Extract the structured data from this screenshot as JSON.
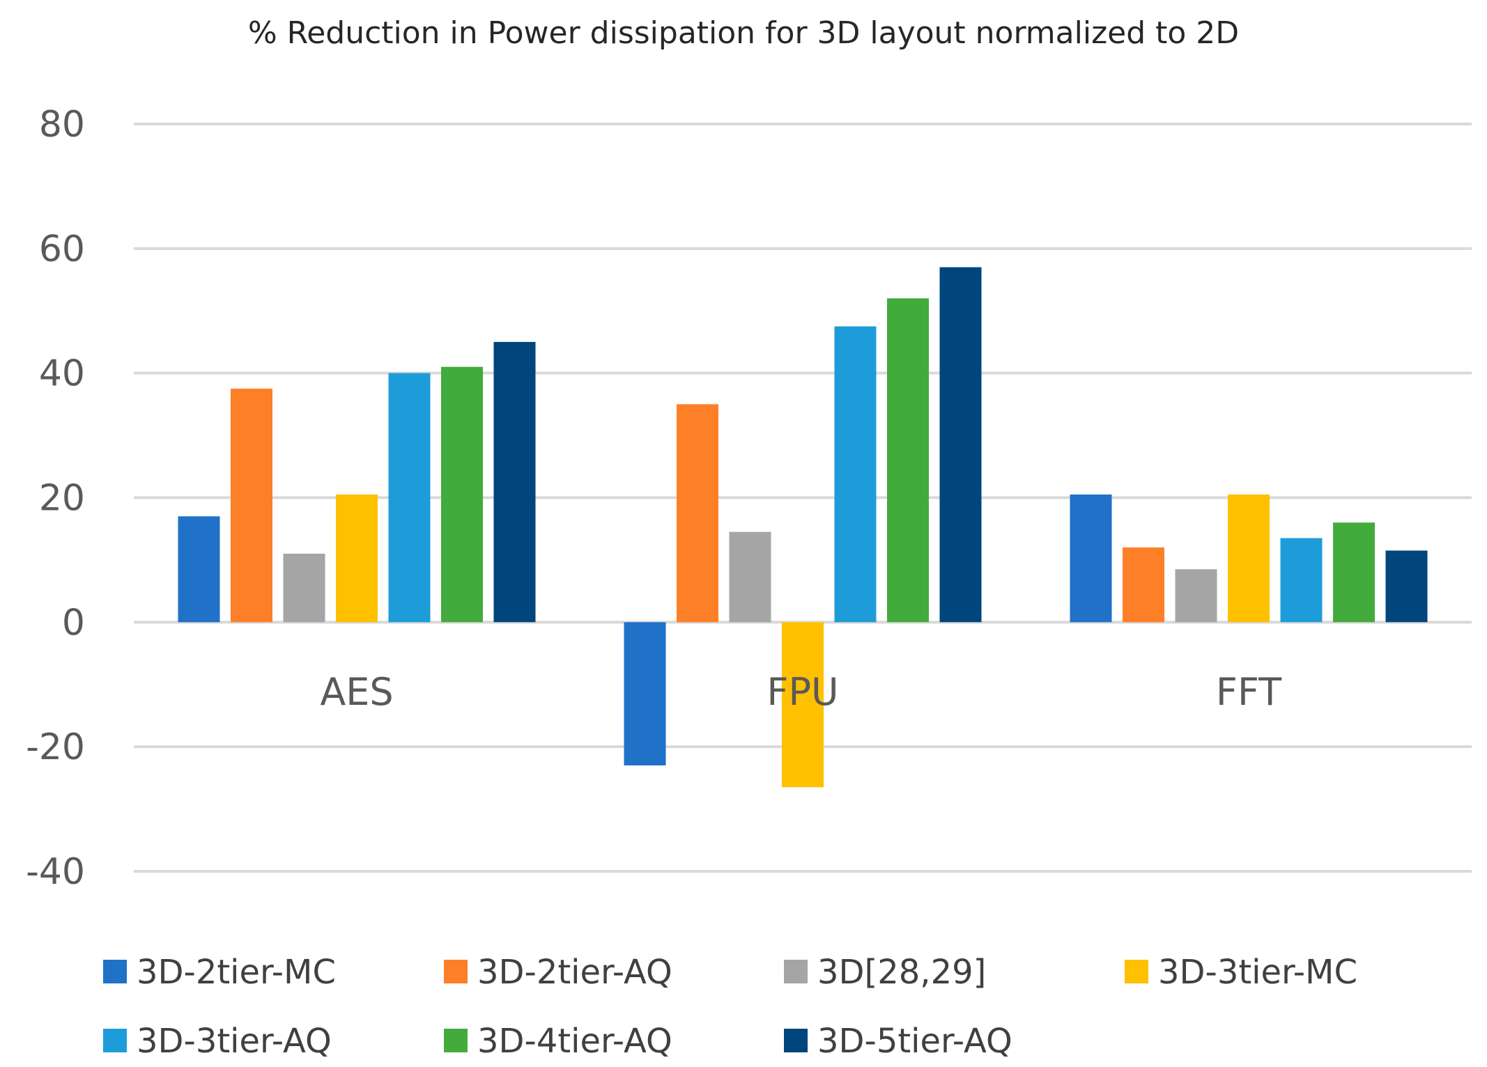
{
  "chart_data": {
    "type": "bar",
    "title": "% Reduction in Power dissipation for 3D layout normalized to 2D",
    "xlabel": "",
    "ylabel": "",
    "ylim": [
      -40,
      80
    ],
    "yticks": [
      80,
      60,
      40,
      20,
      0,
      -20,
      -40
    ],
    "grid": true,
    "legend_position": "bottom",
    "categories": [
      "AES",
      "FPU",
      "FFT"
    ],
    "series": [
      {
        "name": "3D-2tier-MC",
        "color": "#1f72c8",
        "values": [
          17,
          -23,
          20.5
        ]
      },
      {
        "name": "3D-2tier-AQ",
        "color": "#fd7f28",
        "values": [
          37.5,
          35,
          12
        ]
      },
      {
        "name": "3D[28,29]",
        "color": "#a5a5a5",
        "values": [
          11,
          14.5,
          8.5
        ]
      },
      {
        "name": "3D-3tier-MC",
        "color": "#ffc000",
        "values": [
          20.5,
          -26.5,
          20.5
        ]
      },
      {
        "name": "3D-3tier-AQ",
        "color": "#1e9cd9",
        "values": [
          40,
          47.5,
          13.5
        ]
      },
      {
        "name": "3D-4tier-AQ",
        "color": "#43ab3c",
        "values": [
          41,
          52,
          16
        ]
      },
      {
        "name": "3D-5tier-AQ",
        "color": "#00457c",
        "values": [
          45,
          57,
          11.5
        ]
      }
    ]
  }
}
